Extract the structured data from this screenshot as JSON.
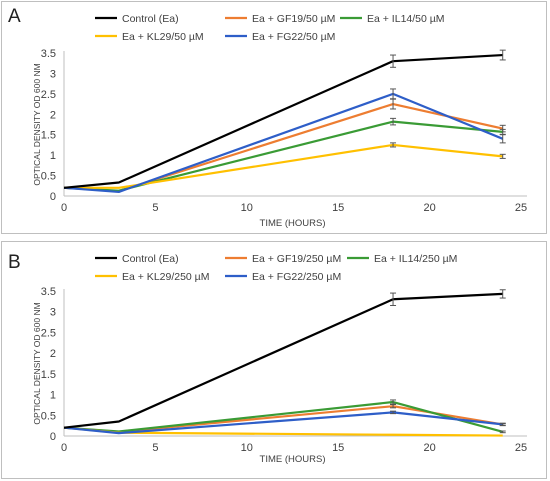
{
  "chart_data": [
    {
      "panel": "A",
      "type": "line",
      "xlabel": "TIME (HOURS)",
      "ylabel": "OPTICAL DENSITY OD 600 NM",
      "xlim": [
        0,
        25
      ],
      "ylim": [
        0,
        3.5
      ],
      "xticks": [
        0,
        5,
        10,
        15,
        20,
        25
      ],
      "yticks": [
        0,
        0.5,
        1,
        1.5,
        2,
        2.5,
        3,
        3.5
      ],
      "x": [
        0,
        3,
        18,
        24
      ],
      "grid": false,
      "legend_position": "top",
      "series": [
        {
          "name": "Control (Ea)",
          "color": "#000000",
          "values": [
            0.2,
            0.33,
            3.3,
            3.45
          ],
          "errors": [
            0,
            0,
            0.15,
            0.12
          ]
        },
        {
          "name": "Ea + GF19/50 µM",
          "color": "#ED7D31",
          "values": [
            0.2,
            0.12,
            2.25,
            1.65
          ],
          "errors": [
            0,
            0,
            0.12,
            0.08
          ]
        },
        {
          "name": "Ea + IL14/50 µM",
          "color": "#3A9B35",
          "values": [
            0.2,
            0.13,
            1.82,
            1.57
          ],
          "errors": [
            0,
            0,
            0.08,
            0.06
          ]
        },
        {
          "name": "Ea + KL29/50 µM",
          "color": "#FFC000",
          "values": [
            0.2,
            0.2,
            1.25,
            0.97
          ],
          "errors": [
            0,
            0,
            0.05,
            0.05
          ]
        },
        {
          "name": "Ea + FG22/50 µM",
          "color": "#2E5EC8",
          "values": [
            0.2,
            0.1,
            2.5,
            1.4
          ],
          "errors": [
            0,
            0,
            0.12,
            0.1
          ]
        }
      ]
    },
    {
      "panel": "B",
      "type": "line",
      "xlabel": "TIME (HOURS)",
      "ylabel": "OPTICAL DENSITY OD 600 NM",
      "xlim": [
        0,
        25
      ],
      "ylim": [
        0,
        3.5
      ],
      "xticks": [
        0,
        5,
        10,
        15,
        20,
        25
      ],
      "yticks": [
        0,
        0.5,
        1,
        1.5,
        2,
        2.5,
        3,
        3.5
      ],
      "x": [
        0,
        3,
        18,
        24
      ],
      "grid": false,
      "legend_position": "top",
      "series": [
        {
          "name": "Control (Ea)",
          "color": "#000000",
          "values": [
            0.2,
            0.35,
            3.3,
            3.43
          ],
          "errors": [
            0,
            0,
            0.15,
            0.1
          ]
        },
        {
          "name": "Ea + GF19/250 µM",
          "color": "#ED7D31",
          "values": [
            0.2,
            0.1,
            0.72,
            0.28
          ],
          "errors": [
            0,
            0,
            0.04,
            0.03
          ]
        },
        {
          "name": "Ea + IL14/250 µM",
          "color": "#3A9B35",
          "values": [
            0.2,
            0.11,
            0.82,
            0.1
          ],
          "errors": [
            0,
            0,
            0.05,
            0.02
          ]
        },
        {
          "name": "Ea + KL29/250 µM",
          "color": "#FFC000",
          "values": [
            0.2,
            0.08,
            0.03,
            0.01
          ],
          "errors": [
            0,
            0,
            0,
            0
          ]
        },
        {
          "name": "Ea + FG22/250 µM",
          "color": "#2E5EC8",
          "values": [
            0.2,
            0.07,
            0.57,
            0.28
          ],
          "errors": [
            0,
            0,
            0.03,
            0.02
          ]
        }
      ]
    }
  ]
}
